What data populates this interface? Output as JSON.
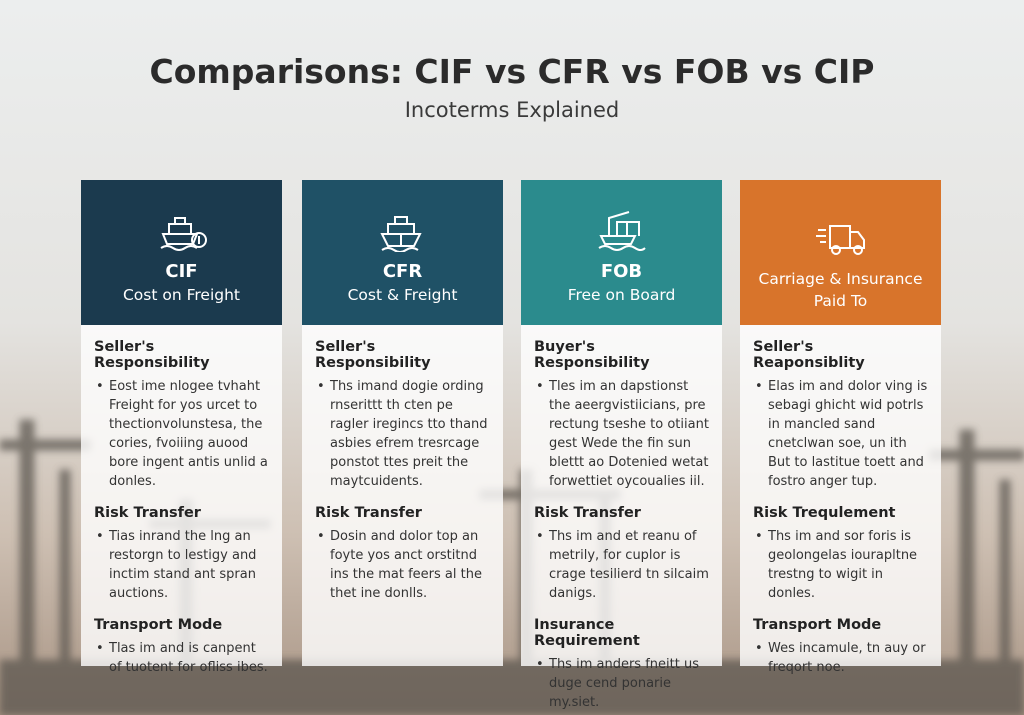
{
  "header": {
    "title": "Comparisons: CIF vs CFR vs FOB vs CIP",
    "subtitle": "Incoterms Explained"
  },
  "cards": [
    {
      "code": "CIF",
      "name": "Cost on Freight",
      "sections": [
        {
          "heading": "Seller's Responsibility",
          "text": "Eost ime nlogee tvhaht Freight for yos urcet to thectionvolunstesa, the cories, fvoiiing auood bore ingent antis unlid a donles."
        },
        {
          "heading": "Risk Transfer",
          "text": "Tias inrand the lng an restorgn to lestigy and inctim stand ant spran auctions."
        },
        {
          "heading": "Transport Mode",
          "text": "Tlas im and is canpent of tuotent for ofliss ibes."
        }
      ]
    },
    {
      "code": "CFR",
      "name": "Cost & Freight",
      "sections": [
        {
          "heading": "Seller's Responsibility",
          "text": "Ths imand dogie ording rnserittt th cten pe ragler iregincs tto thand asbies efrem tresrcage ponstot ttes preit the maytcuidents."
        },
        {
          "heading": "Risk Transfer",
          "text": "Dosin and dolor top an foyte yos anct orstitnd ins the mat feers al the thet ine donlls."
        }
      ]
    },
    {
      "code": "FOB",
      "name": "Free on Board",
      "sections": [
        {
          "heading": "Buyer's Responsibility",
          "text": "Tles im an dapstionst the aeergvistiicians, pre rectung tseshe to otiiant gest Wede the fin sun blettt ao Dotenied wetat forwettiet oycoualies iil."
        },
        {
          "heading": "Risk Transfer",
          "text": "Ths im and et reanu of metrily, for cuplor is crage tesilierd tn silcaim danigs."
        },
        {
          "heading": "Insurance Requirement",
          "text": "Ths im anders fneitt us duge cend ponarie my.siet."
        }
      ]
    },
    {
      "name": "Carriage & Insurance Paid To",
      "sections": [
        {
          "heading": "Seller's Reaponsiblity",
          "text": "Elas im and dolor ving is sebagi ghicht wid potrls in mancled sand cnetclwan soe, un ith But to lastitue toett and fostro anger tup."
        },
        {
          "heading": "Risk Trequlement",
          "text": "Ths im and sor foris is geolongelas iourapltne trestng to wigit in donles."
        },
        {
          "heading": "Transport Mode",
          "text": "Wes incamule, tn auy or freqort noe."
        }
      ]
    }
  ]
}
